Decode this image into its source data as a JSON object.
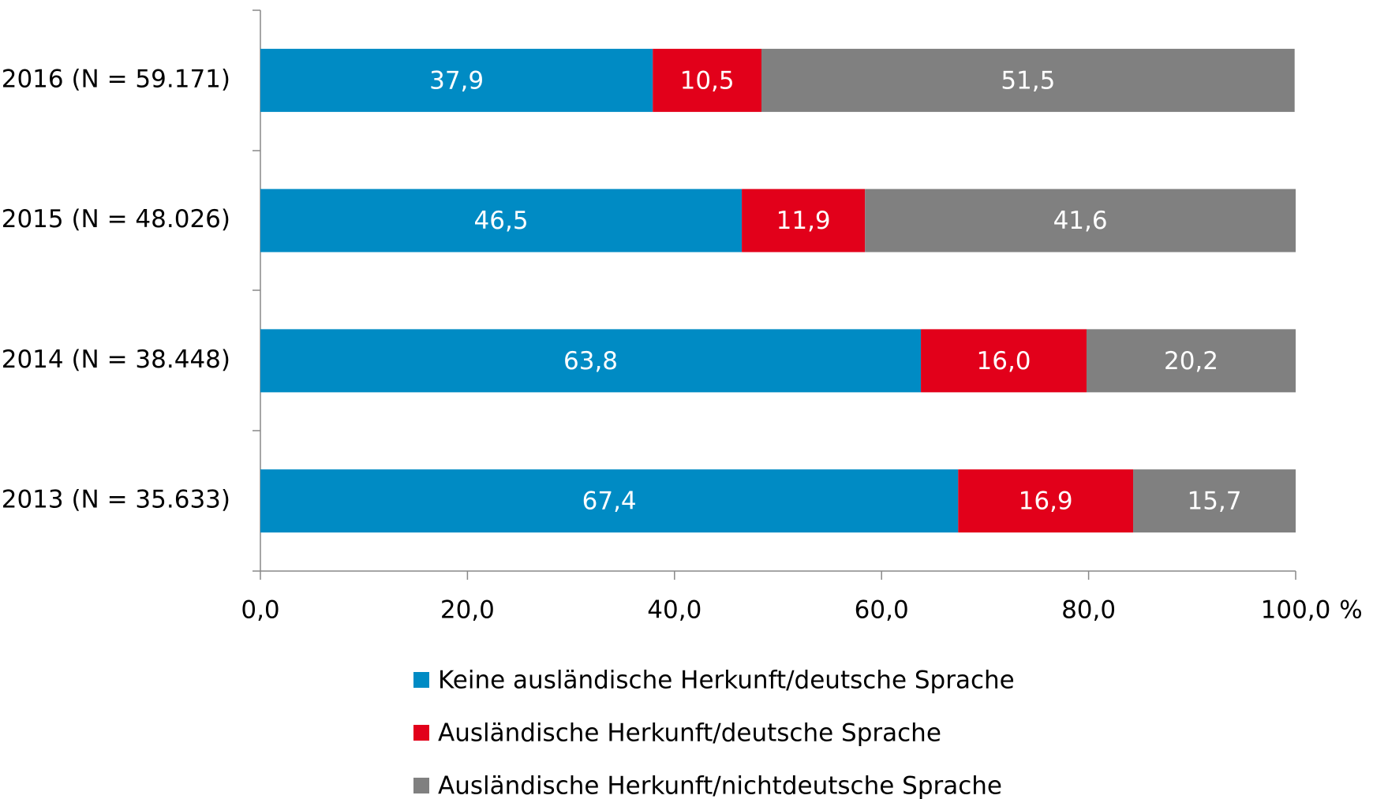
{
  "chart_data": {
    "type": "stacked_barh",
    "categories": [
      "2016 (N = 59.171)",
      "2015 (N = 48.026)",
      "2014 (N = 38.448)",
      "2013 (N = 35.633)"
    ],
    "series": [
      {
        "name": "Keine ausländische Herkunft/deutsche Sprache",
        "color": "#008bc4",
        "values": [
          37.9,
          46.5,
          63.8,
          67.4
        ],
        "value_labels": [
          "37,9",
          "46,5",
          "63,8",
          "67,4"
        ]
      },
      {
        "name": "Ausländische Herkunft/deutsche Sprache",
        "color": "#e2001a",
        "values": [
          10.5,
          11.9,
          16.0,
          16.9
        ],
        "value_labels": [
          "10,5",
          "11,9",
          "16,0",
          "16,9"
        ]
      },
      {
        "name": "Ausländische Herkunft/nichtdeutsche Sprache",
        "color": "#808080",
        "values": [
          51.5,
          41.6,
          20.2,
          15.7
        ],
        "value_labels": [
          "51,5",
          "41,6",
          "20,2",
          "15,7"
        ]
      }
    ],
    "xlabel": "%",
    "xlim": [
      0,
      100
    ],
    "xticks": [
      {
        "value": 0,
        "label": "0,0"
      },
      {
        "value": 20,
        "label": "20,0"
      },
      {
        "value": 40,
        "label": "40,0"
      },
      {
        "value": 60,
        "label": "60,0"
      },
      {
        "value": 80,
        "label": "80,0"
      },
      {
        "value": 100,
        "label": "100,0"
      }
    ],
    "legend": "bottom"
  }
}
